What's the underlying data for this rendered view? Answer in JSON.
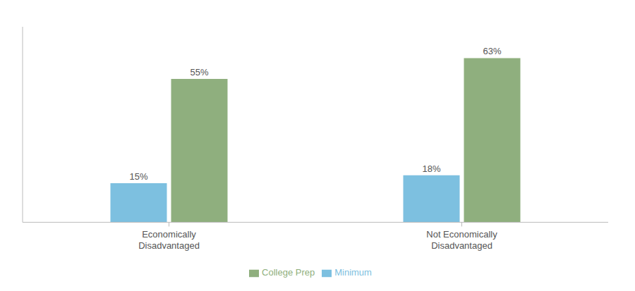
{
  "chart_data": {
    "type": "bar",
    "categories": [
      "Economically\nDisadvantaged",
      "Not Economically\nDisadvantaged"
    ],
    "series": [
      {
        "name": "Minimum",
        "color": "#7DC0E0",
        "values": [
          15,
          18
        ],
        "value_labels": [
          "15%",
          "18%"
        ]
      },
      {
        "name": "College Prep",
        "color": "#8FAF7E",
        "values": [
          55,
          63
        ],
        "value_labels": [
          "55%",
          "63%"
        ]
      }
    ],
    "ylim": [
      0,
      75
    ],
    "data_labels": true,
    "tick_labels": "x",
    "legend": "bottom"
  }
}
